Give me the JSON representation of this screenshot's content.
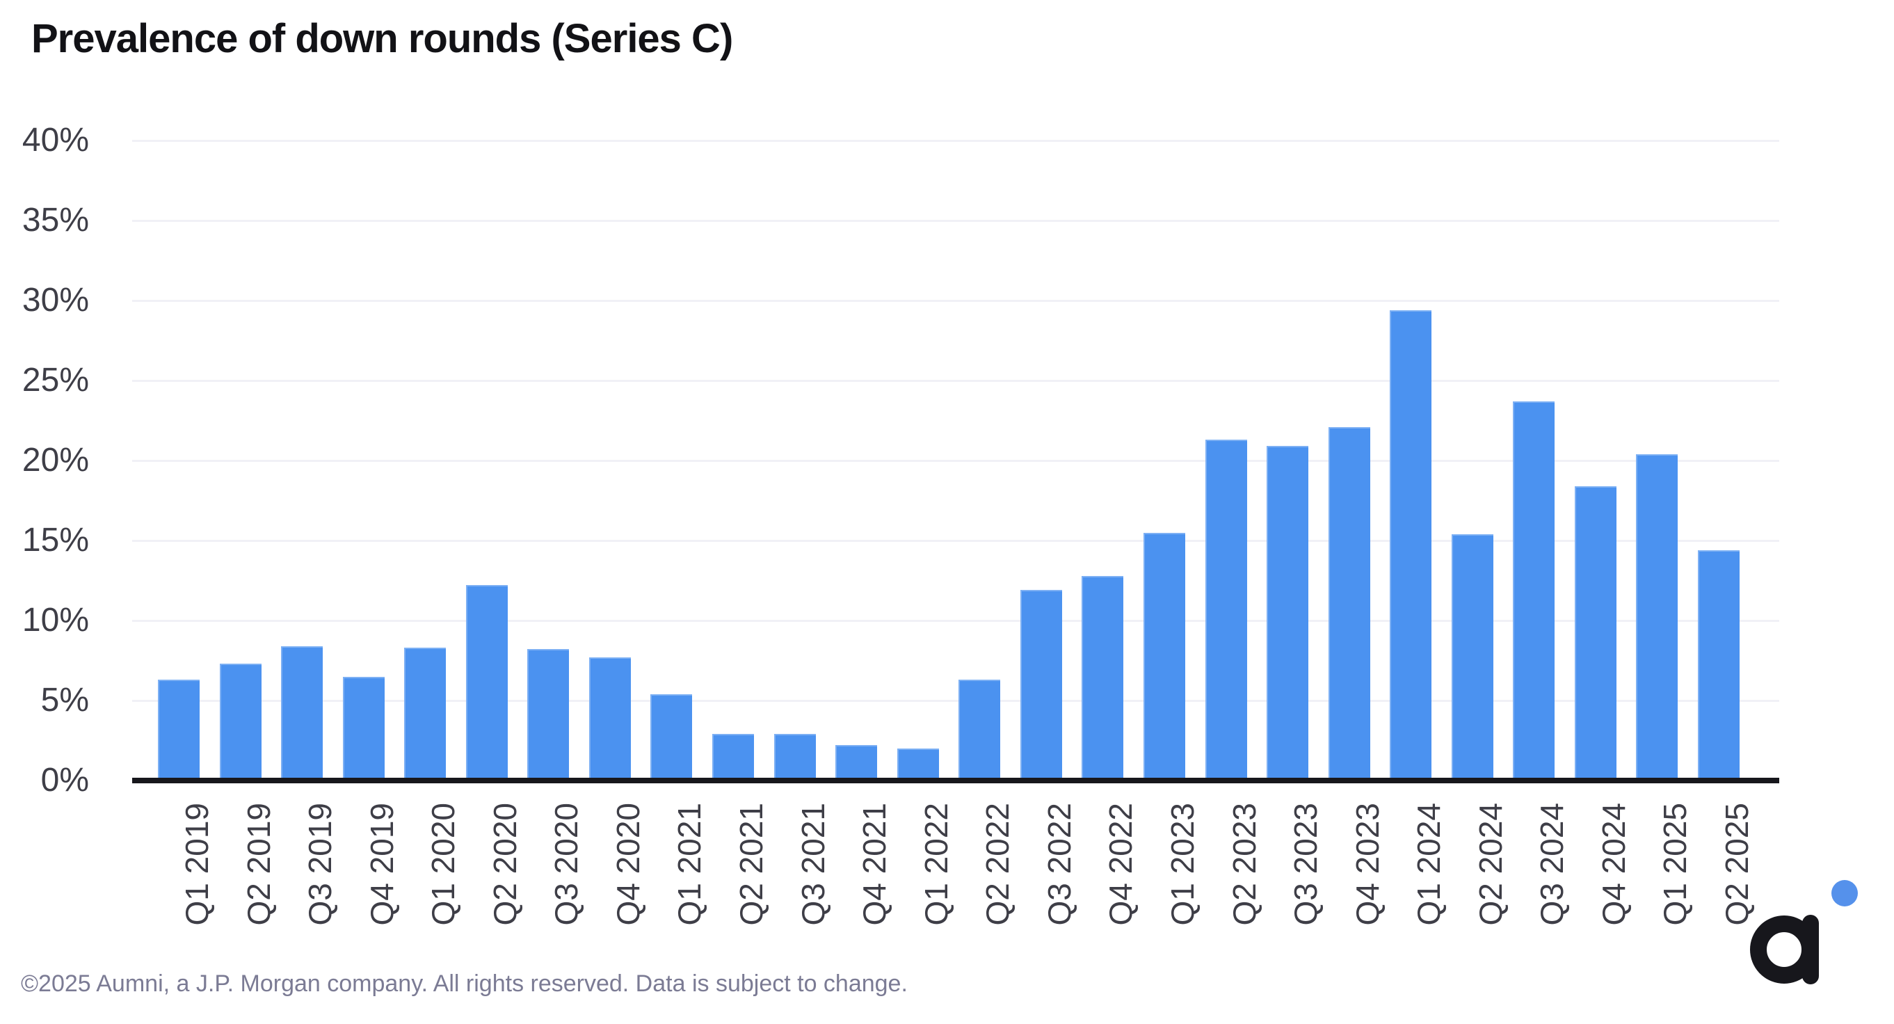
{
  "title": "Prevalence of down rounds (Series C)",
  "footer": {
    "text": "©2025 Aumni, a J.P. Morgan company. All rights reserved. Data is subject to change."
  },
  "logo": {
    "name": "aumni-logo",
    "letter": "a",
    "letter_color": "#17171c",
    "dot_color": "#5591eb"
  },
  "colors": {
    "bar": "#4b92f0",
    "gridline": "#f1f1f6",
    "axis_line": "#17171c",
    "tick_label": "#3e3e47",
    "title": "#121216",
    "footer": "#7b7b94"
  },
  "chart_data": {
    "type": "bar",
    "title": "Prevalence of down rounds (Series C)",
    "xlabel": "",
    "ylabel": "",
    "categories": [
      "Q1 2019",
      "Q2 2019",
      "Q3 2019",
      "Q4 2019",
      "Q1 2020",
      "Q2 2020",
      "Q3 2020",
      "Q4 2020",
      "Q1 2021",
      "Q2 2021",
      "Q3 2021",
      "Q4 2021",
      "Q1 2022",
      "Q2 2022",
      "Q3 2022",
      "Q4 2022",
      "Q1 2023",
      "Q2 2023",
      "Q3 2023",
      "Q4 2023",
      "Q1 2024",
      "Q2 2024",
      "Q3 2024",
      "Q4 2024",
      "Q1 2025",
      "Q2 2025"
    ],
    "values": [
      6.3,
      7.3,
      8.4,
      6.5,
      8.3,
      12.2,
      8.2,
      7.7,
      5.4,
      2.9,
      2.9,
      2.2,
      2.0,
      6.3,
      11.9,
      12.8,
      15.5,
      21.3,
      20.9,
      22.1,
      29.4,
      15.4,
      23.7,
      18.4,
      20.4,
      14.4
    ],
    "ylim": [
      0,
      40
    ],
    "ytick_step": 5,
    "ytick_labels": [
      "0%",
      "5%",
      "10%",
      "15%",
      "20%",
      "25%",
      "30%",
      "35%",
      "40%"
    ],
    "ytick_format": "percent",
    "grid": "horizontal",
    "legend": "none"
  }
}
